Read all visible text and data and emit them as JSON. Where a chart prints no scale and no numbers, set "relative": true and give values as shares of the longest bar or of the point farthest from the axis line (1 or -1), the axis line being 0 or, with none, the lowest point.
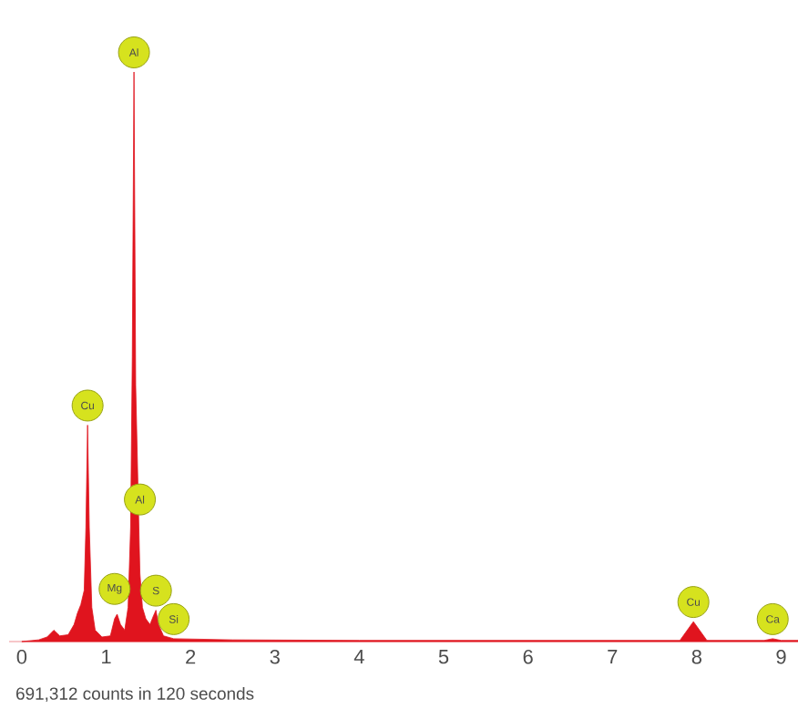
{
  "chart_data": {
    "type": "area",
    "relative": true,
    "color": "#e0141e",
    "x": [
      0,
      0.2,
      0.3,
      0.38,
      0.45,
      0.55,
      0.62,
      0.66,
      0.7,
      0.74,
      0.76,
      0.78,
      0.8,
      0.83,
      0.87,
      0.95,
      1.05,
      1.1,
      1.13,
      1.17,
      1.22,
      1.26,
      1.29,
      1.31,
      1.33,
      1.35,
      1.37,
      1.4,
      1.43,
      1.47,
      1.52,
      1.56,
      1.59,
      1.62,
      1.68,
      1.8,
      2.5,
      4,
      6,
      7,
      7.8,
      7.96,
      8.12,
      8.3,
      8.8,
      8.9,
      9.0,
      9.2
    ],
    "values": [
      0,
      0.003,
      0.008,
      0.02,
      0.01,
      0.012,
      0.03,
      0.05,
      0.065,
      0.09,
      0.2,
      0.38,
      0.2,
      0.06,
      0.02,
      0.008,
      0.01,
      0.04,
      0.048,
      0.03,
      0.02,
      0.06,
      0.2,
      0.5,
      1,
      0.45,
      null,
      0.12,
      0.06,
      0.04,
      0.03,
      0.045,
      0.055,
      0.03,
      0.01,
      0.005,
      0.003,
      0.002,
      0.002,
      0.002,
      0.002,
      0.035,
      0.002,
      0.002,
      0.002,
      0.005,
      0.002,
      0.002
    ],
    "xlim": [
      -0.15,
      9.2
    ],
    "xticks": [
      0,
      1,
      2,
      3,
      4,
      5,
      6,
      7,
      8,
      9
    ],
    "annotations": [
      {
        "text": "Al",
        "x": 1.33,
        "y": 1
      },
      {
        "text": "Cu",
        "x": 0.78,
        "y": 0.38
      },
      {
        "text": "Al",
        "x": 1.4,
        "y": 0.215
      },
      {
        "text": "Mg",
        "x": 1.1,
        "y": 0.058
      },
      {
        "text": "S",
        "x": 1.59,
        "y": 0.055
      },
      {
        "text": "Si",
        "x": 1.8,
        "y": 0.005
      },
      {
        "text": "Cu",
        "x": 7.96,
        "y": 0.035
      },
      {
        "text": "Ca",
        "x": 8.9,
        "y": 0.005
      },
      "691,312 counts in 120 seconds"
    ]
  }
}
